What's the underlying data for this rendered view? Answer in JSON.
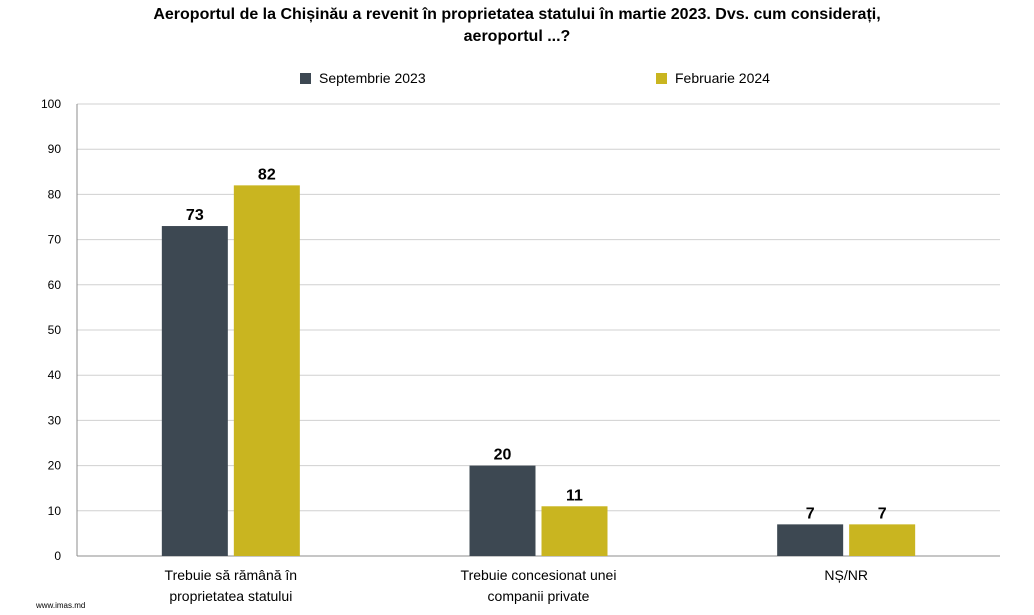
{
  "title_line1": "Aeroportul de la Chișinău a revenit în proprietatea statului în martie 2023. Dvs. cum considerați,",
  "title_line2": "aeroportul ...?",
  "footer": "www.imas.md",
  "chart_data": {
    "type": "bar",
    "title": "Aeroportul de la Chișinău a revenit în proprietatea statului în martie 2023. Dvs. cum considerați, aeroportul ...?",
    "categories": [
      [
        "Trebuie să rămână în",
        "proprietatea statului"
      ],
      [
        "Trebuie concesionat unei",
        "companii private"
      ],
      [
        "NȘ/NR"
      ]
    ],
    "series": [
      {
        "name": "Septembrie 2023",
        "values": [
          73,
          20,
          7
        ],
        "color": "#3d4852"
      },
      {
        "name": "Februarie 2024",
        "values": [
          82,
          11,
          7
        ],
        "color": "#c9b520"
      }
    ],
    "ylim": [
      0,
      100
    ],
    "yticks": [
      0,
      10,
      20,
      30,
      40,
      50,
      60,
      70,
      80,
      90,
      100
    ],
    "grid": true,
    "legend": "top-center"
  }
}
